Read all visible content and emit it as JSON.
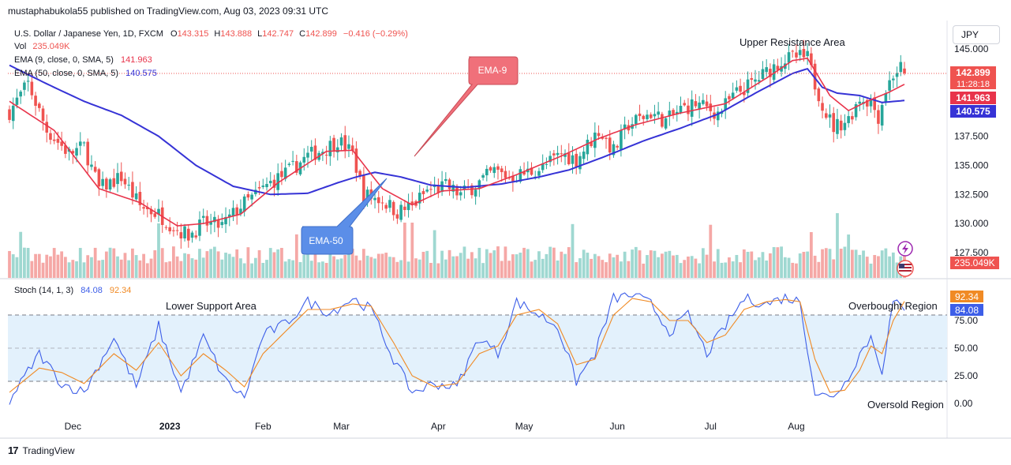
{
  "header": {
    "published": "mustaphabukola55 published on TradingView.com, Aug 03, 2023 09:31 UTC",
    "symbol": "U.S. Dollar / Japanese Yen, 1D, FXCM",
    "o_label": "O",
    "o_val": "143.315",
    "h_label": "H",
    "h_val": "143.888",
    "l_label": "L",
    "l_val": "142.747",
    "c_label": "C",
    "c_val": "142.899",
    "change": "−0.416 (−0.29%)",
    "vol_label": "Vol",
    "vol_val": "235.049K",
    "ema9_label": "EMA (9, close, 0, SMA, 5)",
    "ema9_val": "141.963",
    "ema50_label": "EMA (50, close, 0, SMA, 5)",
    "ema50_val": "140.575",
    "stoch_label": "Stoch (14, 1, 3)",
    "stoch_k": "84.08",
    "stoch_d": "92.34"
  },
  "currency_button": "JPY",
  "annotations": {
    "upper_resistance": "Upper Resistance Area",
    "lower_support": "Lower Support Area",
    "overbought": "Overbought Region",
    "oversold": "Oversold Region",
    "ema9_callout": "EMA-9",
    "ema50_callout": "EMA-50"
  },
  "price_labels": {
    "last": "142.899",
    "countdown": "11:28:18",
    "ema9": "141.963",
    "ema50": "140.575",
    "volume": "235.049K",
    "stoch_d": "92.34",
    "stoch_k": "84.08"
  },
  "footer": {
    "brand": "TradingView"
  },
  "colors": {
    "up": "#26a69a",
    "down": "#ef5350",
    "ema9": "#e8344b",
    "ema50": "#3633d6",
    "stoch_k": "#3d5ee8",
    "stoch_d": "#f08a24",
    "band": "#e3f1fc"
  },
  "chart_data": [
    {
      "type": "candlestick",
      "title": "U.S. Dollar / Japanese Yen, 1D, FXCM",
      "y_ticks": [
        127.5,
        130.0,
        132.5,
        135.0,
        137.5,
        140.0,
        142.5,
        145.0
      ],
      "y_tick_labels": [
        "127.500",
        "130.000",
        "132.500",
        "135.000",
        "137.500",
        "",
        "",
        "145.000"
      ],
      "x_tick_labels": [
        "Dec",
        "2023",
        "Feb",
        "Mar",
        "Apr",
        "May",
        "Jun",
        "Jul",
        "Aug"
      ],
      "close_path": [
        [
          0,
          139.6
        ],
        [
          5,
          142.0
        ],
        [
          10,
          138.0
        ],
        [
          16,
          136.0
        ],
        [
          20,
          136.6
        ],
        [
          24,
          133.0
        ],
        [
          30,
          134.0
        ],
        [
          35,
          131.5
        ],
        [
          40,
          130.8
        ],
        [
          45,
          129.5
        ],
        [
          48,
          129.0
        ],
        [
          52,
          130.0
        ],
        [
          57,
          129.8
        ],
        [
          62,
          131.5
        ],
        [
          65,
          132.2
        ],
        [
          70,
          133.5
        ],
        [
          75,
          134.5
        ],
        [
          80,
          135.8
        ],
        [
          85,
          136.5
        ],
        [
          88,
          137.2
        ],
        [
          92,
          136.0
        ],
        [
          95,
          132.5
        ],
        [
          100,
          132.0
        ],
        [
          104,
          131.0
        ],
        [
          108,
          131.5
        ],
        [
          112,
          132.8
        ],
        [
          117,
          133.2
        ],
        [
          121,
          132.5
        ],
        [
          125,
          133.3
        ],
        [
          130,
          134.5
        ],
        [
          134,
          134.0
        ],
        [
          138,
          134.3
        ],
        [
          143,
          134.8
        ],
        [
          148,
          136.0
        ],
        [
          152,
          135.5
        ],
        [
          158,
          138.0
        ],
        [
          162,
          136.2
        ],
        [
          166,
          138.5
        ],
        [
          172,
          139.5
        ],
        [
          176,
          138.8
        ],
        [
          180,
          139.8
        ],
        [
          184,
          140.3
        ],
        [
          190,
          139.5
        ],
        [
          195,
          141.2
        ],
        [
          199,
          142.0
        ],
        [
          203,
          143.0
        ],
        [
          207,
          144.0
        ],
        [
          211,
          144.3
        ],
        [
          214,
          144.2
        ],
        [
          216,
          142.0
        ],
        [
          219,
          139.5
        ],
        [
          221,
          138.3
        ],
        [
          225,
          139.0
        ],
        [
          228,
          140.8
        ],
        [
          231,
          140.5
        ],
        [
          233,
          139.2
        ],
        [
          235,
          141.5
        ],
        [
          237,
          142.8
        ],
        [
          239,
          143.4
        ],
        [
          240,
          142.9
        ]
      ],
      "ema9": [
        [
          0,
          140.5
        ],
        [
          12,
          138.0
        ],
        [
          24,
          133.0
        ],
        [
          35,
          131.8
        ],
        [
          45,
          129.8
        ],
        [
          52,
          130.0
        ],
        [
          62,
          130.8
        ],
        [
          72,
          133.5
        ],
        [
          85,
          136.2
        ],
        [
          92,
          136.3
        ],
        [
          100,
          133.0
        ],
        [
          108,
          131.6
        ],
        [
          116,
          132.8
        ],
        [
          126,
          133.0
        ],
        [
          136,
          134.2
        ],
        [
          148,
          135.8
        ],
        [
          158,
          137.3
        ],
        [
          168,
          138.5
        ],
        [
          180,
          139.5
        ],
        [
          192,
          140.3
        ],
        [
          203,
          142.5
        ],
        [
          210,
          144.0
        ],
        [
          214,
          144.2
        ],
        [
          220,
          141.0
        ],
        [
          225,
          139.7
        ],
        [
          230,
          140.5
        ],
        [
          236,
          141.3
        ],
        [
          240,
          141.963
        ]
      ],
      "ema50": [
        [
          0,
          143.6
        ],
        [
          10,
          142.0
        ],
        [
          20,
          140.5
        ],
        [
          30,
          139.3
        ],
        [
          40,
          137.5
        ],
        [
          50,
          135.0
        ],
        [
          60,
          133.2
        ],
        [
          70,
          132.5
        ],
        [
          80,
          132.6
        ],
        [
          88,
          133.5
        ],
        [
          93,
          134.0
        ],
        [
          98,
          134.4
        ],
        [
          105,
          134.0
        ],
        [
          113,
          133.3
        ],
        [
          122,
          133.1
        ],
        [
          132,
          133.4
        ],
        [
          142,
          134.0
        ],
        [
          150,
          134.6
        ],
        [
          160,
          135.8
        ],
        [
          170,
          137.1
        ],
        [
          180,
          138.2
        ],
        [
          190,
          139.4
        ],
        [
          200,
          141.2
        ],
        [
          210,
          142.9
        ],
        [
          214,
          143.3
        ],
        [
          218,
          141.7
        ],
        [
          222,
          141.2
        ],
        [
          228,
          141.0
        ],
        [
          234,
          140.4
        ],
        [
          240,
          140.575
        ]
      ],
      "candle_count": 241,
      "last": {
        "open": 143.315,
        "high": 143.888,
        "low": 142.747,
        "close": 142.899
      },
      "volume_last": "235.049K"
    },
    {
      "type": "line",
      "title": "Stoch (14, 1, 3)",
      "y_ticks": [
        0,
        25,
        50,
        75
      ],
      "y_tick_labels": [
        "0.00",
        "25.00",
        "50.00",
        "75.00"
      ],
      "overbought": 80,
      "oversold": 20,
      "series": [
        {
          "name": "%K",
          "last": 84.08,
          "points": [
            [
              0,
              2
            ],
            [
              8,
              45
            ],
            [
              14,
              18
            ],
            [
              20,
              10
            ],
            [
              28,
              60
            ],
            [
              34,
              15
            ],
            [
              40,
              70
            ],
            [
              46,
              10
            ],
            [
              52,
              60
            ],
            [
              58,
              20
            ],
            [
              63,
              5
            ],
            [
              68,
              62
            ],
            [
              74,
              72
            ],
            [
              80,
              92
            ],
            [
              86,
              82
            ],
            [
              92,
              95
            ],
            [
              97,
              85
            ],
            [
              103,
              40
            ],
            [
              108,
              10
            ],
            [
              114,
              18
            ],
            [
              120,
              15
            ],
            [
              126,
              60
            ],
            [
              131,
              45
            ],
            [
              136,
              92
            ],
            [
              142,
              80
            ],
            [
              147,
              70
            ],
            [
              152,
              20
            ],
            [
              157,
              45
            ],
            [
              162,
              95
            ],
            [
              167,
              98
            ],
            [
              172,
              90
            ],
            [
              177,
              65
            ],
            [
              182,
              80
            ],
            [
              187,
              45
            ],
            [
              192,
              70
            ],
            [
              197,
              95
            ],
            [
              203,
              90
            ],
            [
              208,
              96
            ],
            [
              212,
              92
            ],
            [
              216,
              10
            ],
            [
              220,
              5
            ],
            [
              224,
              18
            ],
            [
              228,
              45
            ],
            [
              231,
              60
            ],
            [
              234,
              30
            ],
            [
              237,
              92
            ],
            [
              240,
              84.08
            ]
          ]
        },
        {
          "name": "%D",
          "last": 92.34,
          "points": [
            [
              0,
              10
            ],
            [
              8,
              32
            ],
            [
              14,
              28
            ],
            [
              20,
              18
            ],
            [
              28,
              45
            ],
            [
              34,
              30
            ],
            [
              40,
              55
            ],
            [
              46,
              25
            ],
            [
              52,
              45
            ],
            [
              58,
              30
            ],
            [
              63,
              15
            ],
            [
              68,
              45
            ],
            [
              74,
              65
            ],
            [
              80,
              85
            ],
            [
              86,
              85
            ],
            [
              92,
              90
            ],
            [
              97,
              88
            ],
            [
              103,
              55
            ],
            [
              108,
              25
            ],
            [
              114,
              15
            ],
            [
              120,
              18
            ],
            [
              126,
              45
            ],
            [
              131,
              52
            ],
            [
              136,
              80
            ],
            [
              142,
              85
            ],
            [
              147,
              72
            ],
            [
              152,
              35
            ],
            [
              157,
              40
            ],
            [
              162,
              80
            ],
            [
              167,
              95
            ],
            [
              172,
              92
            ],
            [
              177,
              75
            ],
            [
              182,
              75
            ],
            [
              187,
              55
            ],
            [
              192,
              62
            ],
            [
              197,
              85
            ],
            [
              203,
              92
            ],
            [
              208,
              94
            ],
            [
              212,
              92
            ],
            [
              216,
              40
            ],
            [
              220,
              10
            ],
            [
              224,
              12
            ],
            [
              228,
              30
            ],
            [
              231,
              52
            ],
            [
              234,
              45
            ],
            [
              237,
              75
            ],
            [
              240,
              92.34
            ]
          ]
        }
      ]
    }
  ]
}
